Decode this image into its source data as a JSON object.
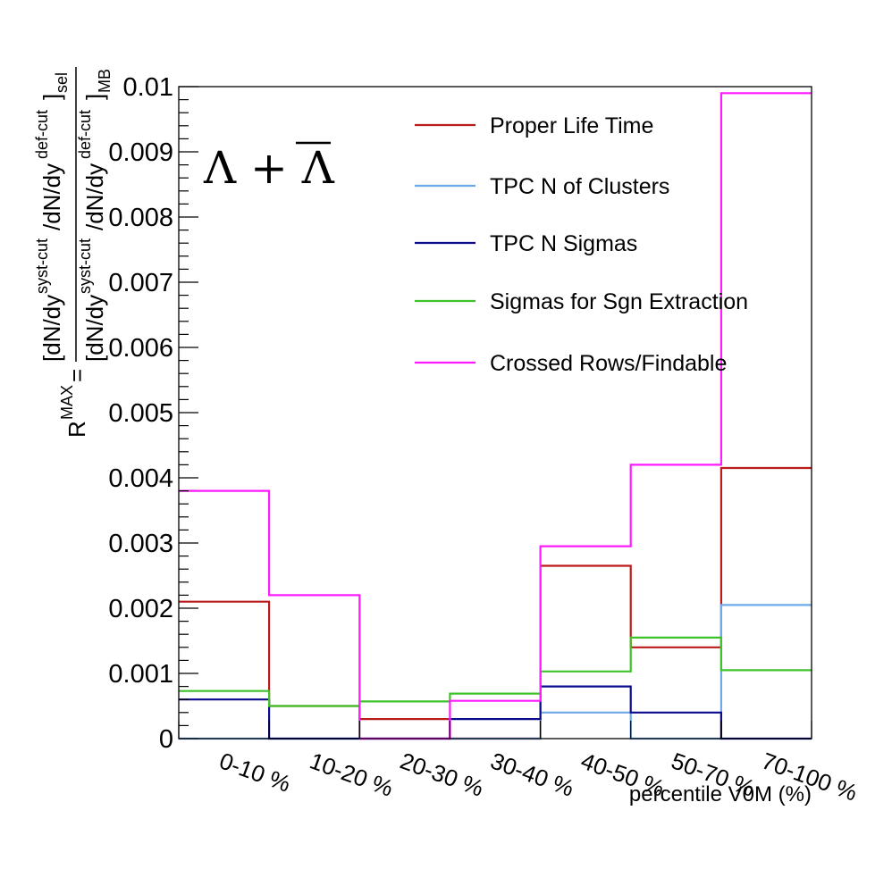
{
  "chart_data": {
    "type": "step-histogram",
    "title": "Λ + Λ",
    "xlabel": "percentile V0M (%)",
    "ylabel": {
      "prefix": "R",
      "prefix_sup": "MAX",
      "equals": "=",
      "numerator": "[dN/dy",
      "numerator_sup1": "syst-cut",
      "numerator_mid": "/dN/dy",
      "numerator_sup2": "def-cut",
      "numerator_end": "]",
      "numerator_sub": "sel",
      "denominator": "[dN/dy",
      "denominator_sup1": "syst-cut",
      "denominator_mid": "/dN/dy",
      "denominator_sup2": "def-cut",
      "denominator_end": "]",
      "denominator_sub": "MB"
    },
    "categories": [
      "0-10 %",
      "10-20 %",
      "20-30 %",
      "30-40 %",
      "40-50 %",
      "50-70 %",
      "70-100 %"
    ],
    "ylim": [
      0,
      0.01
    ],
    "yticks": [
      "0",
      "0.001",
      "0.002",
      "0.003",
      "0.004",
      "0.005",
      "0.006",
      "0.007",
      "0.008",
      "0.009",
      "0.01"
    ],
    "legend_position": "top-right",
    "grid": false,
    "series": [
      {
        "name": "Proper Life Time",
        "color": "#bb1a1a",
        "values": [
          0.0021,
          0.0005,
          0.0003,
          0.0,
          0.00265,
          0.0014,
          0.00415
        ]
      },
      {
        "name": "TPC N of Clusters",
        "color": "#6da8ea",
        "values": [
          0.0,
          0.0,
          0.0,
          0.0,
          0.0004,
          0.0,
          0.00205
        ]
      },
      {
        "name": "TPC N Sigmas",
        "color": "#0a0a8c",
        "values": [
          0.0006,
          0.0,
          0.0,
          0.0003,
          0.0008,
          0.0004,
          0.0
        ]
      },
      {
        "name": "Sigmas for Sgn Extraction",
        "color": "#3ec22a",
        "values": [
          0.00073,
          0.0005,
          0.00057,
          0.00069,
          0.00103,
          0.00155,
          0.00105
        ]
      },
      {
        "name": "Crossed Rows/Findable",
        "color": "#ff1aff",
        "values": [
          0.0038,
          0.0022,
          0.0,
          0.00058,
          0.00295,
          0.0042,
          0.0099
        ]
      }
    ]
  }
}
